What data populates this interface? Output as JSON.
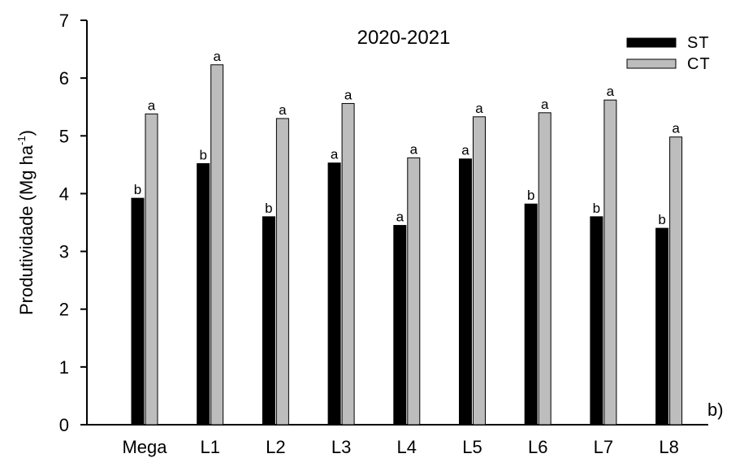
{
  "chart_data": {
    "type": "bar",
    "title": "2020-2021",
    "ylabel": "Produtividade (Mg ha",
    "ylabel_sup": "-1",
    "ylabel_close": ")",
    "xlabel": "",
    "panel_label": "b)",
    "ylim": [
      0,
      7
    ],
    "yticks": [
      "0",
      "1",
      "2",
      "3",
      "4",
      "5",
      "6",
      "7"
    ],
    "categories": [
      "Mega",
      "L1",
      "L2",
      "L3",
      "L4",
      "L5",
      "L6",
      "L7",
      "L8"
    ],
    "legend_position": "top-right",
    "series": [
      {
        "name": "ST",
        "color": "#000000",
        "values": [
          3.92,
          4.52,
          3.6,
          4.53,
          3.45,
          4.6,
          3.82,
          3.6,
          3.4
        ],
        "letters": [
          "b",
          "b",
          "b",
          "a",
          "a",
          "a",
          "b",
          "b",
          "b"
        ]
      },
      {
        "name": "CT",
        "color": "#bdbdbd",
        "values": [
          5.38,
          6.23,
          5.3,
          5.56,
          4.62,
          5.33,
          5.4,
          5.62,
          4.98
        ],
        "letters": [
          "a",
          "a",
          "a",
          "a",
          "a",
          "a",
          "a",
          "a",
          "a"
        ]
      }
    ]
  }
}
